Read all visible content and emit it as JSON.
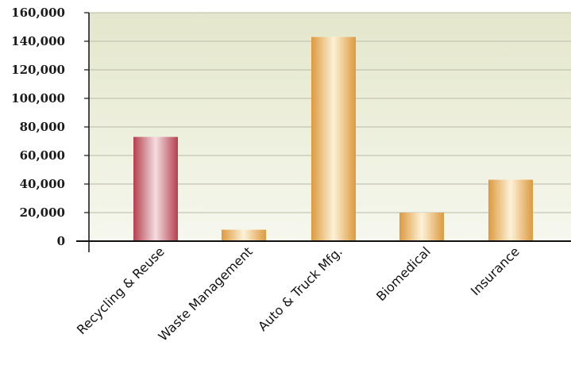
{
  "chart_data": {
    "type": "bar",
    "categories": [
      "Recycling & Reuse",
      "Waste Management",
      "Auto & Truck Mfg.",
      "Biomedical",
      "Insurance"
    ],
    "values": [
      73000,
      8000,
      143000,
      20000,
      43000
    ],
    "ylim": [
      0,
      160000
    ],
    "yticks": [
      0,
      20000,
      40000,
      60000,
      80000,
      100000,
      120000,
      140000,
      160000
    ],
    "ytick_labels": [
      "0",
      "20,000",
      "40,000",
      "60,000",
      "80,000",
      "100,000",
      "120,000",
      "140,000",
      "160,000"
    ],
    "grid": true,
    "bar_colors": [
      "#c0505e",
      "#e8aa52",
      "#e8aa52",
      "#e8aa52",
      "#e8aa52"
    ],
    "highlight_color": "#c0505e",
    "default_color": "#e8aa52",
    "background_color": "#ecefdc",
    "legend": "none"
  }
}
